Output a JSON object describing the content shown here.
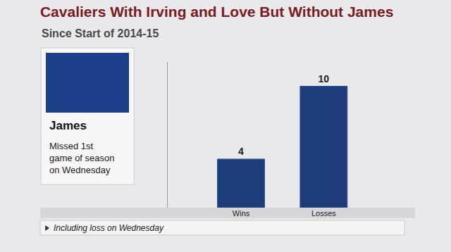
{
  "chart_data": {
    "type": "bar",
    "title": "Cavaliers With Irving and Love But Without James",
    "subtitle": "Since Start of 2014-15",
    "categories": [
      "Wins",
      "Losses"
    ],
    "values": [
      4,
      10
    ],
    "color": "#1d3c78",
    "ylim": [
      0,
      12
    ],
    "grid": false,
    "data_labels": true,
    "tick_labels": "x",
    "annotations": [
      "James",
      "Missed 1st game of season on Wednesday",
      "Including loss on Wednesday"
    ]
  }
}
